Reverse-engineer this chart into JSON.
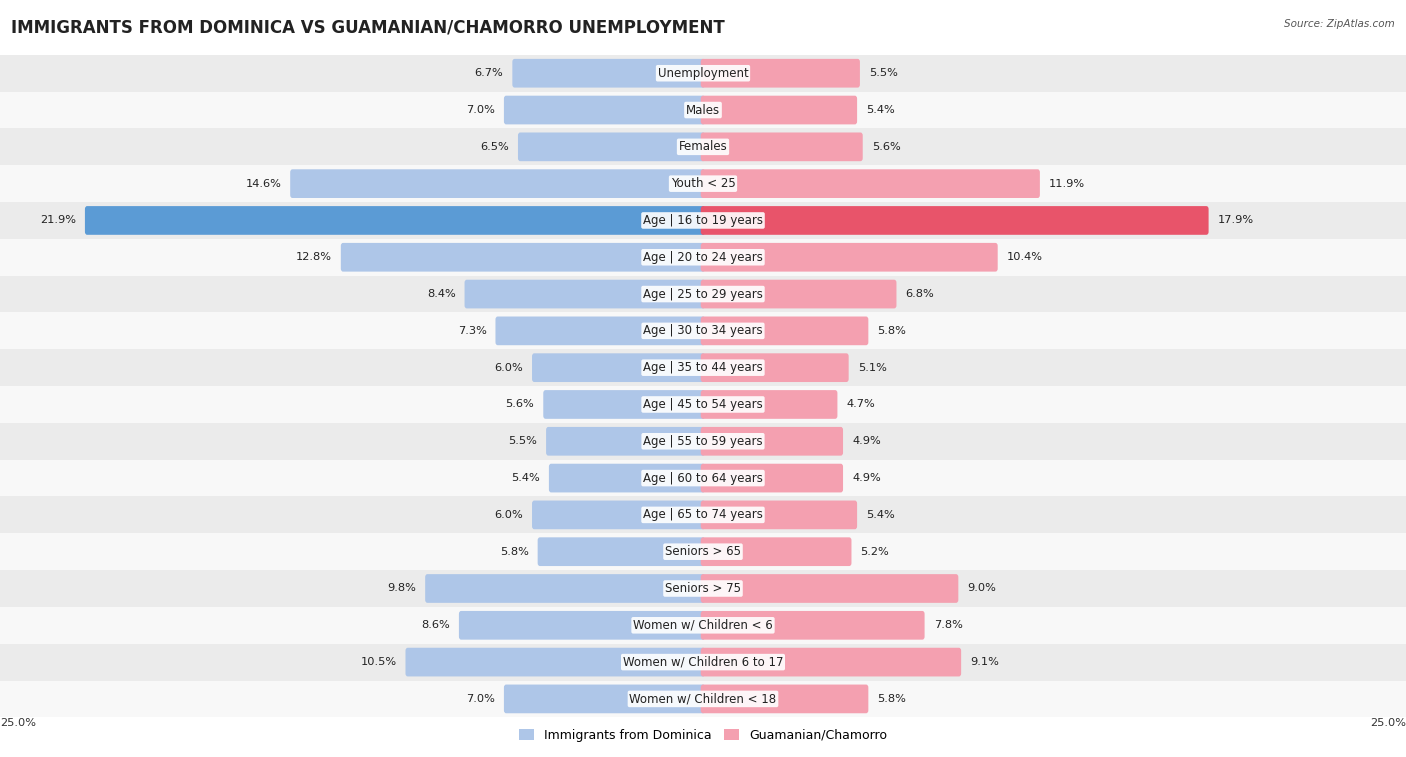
{
  "title": "IMMIGRANTS FROM DOMINICA VS GUAMANIAN/CHAMORRO UNEMPLOYMENT",
  "source": "Source: ZipAtlas.com",
  "categories": [
    "Unemployment",
    "Males",
    "Females",
    "Youth < 25",
    "Age | 16 to 19 years",
    "Age | 20 to 24 years",
    "Age | 25 to 29 years",
    "Age | 30 to 34 years",
    "Age | 35 to 44 years",
    "Age | 45 to 54 years",
    "Age | 55 to 59 years",
    "Age | 60 to 64 years",
    "Age | 65 to 74 years",
    "Seniors > 65",
    "Seniors > 75",
    "Women w/ Children < 6",
    "Women w/ Children 6 to 17",
    "Women w/ Children < 18"
  ],
  "left_values": [
    6.7,
    7.0,
    6.5,
    14.6,
    21.9,
    12.8,
    8.4,
    7.3,
    6.0,
    5.6,
    5.5,
    5.4,
    6.0,
    5.8,
    9.8,
    8.6,
    10.5,
    7.0
  ],
  "right_values": [
    5.5,
    5.4,
    5.6,
    11.9,
    17.9,
    10.4,
    6.8,
    5.8,
    5.1,
    4.7,
    4.9,
    4.9,
    5.4,
    5.2,
    9.0,
    7.8,
    9.1,
    5.8
  ],
  "left_color": "#aec6e8",
  "right_color": "#f4a0b0",
  "highlight_left_color": "#5b9bd5",
  "highlight_right_color": "#e8546a",
  "highlight_row": 4,
  "max_value": 25.0,
  "bar_height": 0.62,
  "row_bg_colors": [
    "#ebebeb",
    "#f8f8f8"
  ],
  "legend_left": "Immigrants from Dominica",
  "legend_right": "Guamanian/Chamorro",
  "title_fontsize": 12,
  "label_fontsize": 8.5,
  "value_fontsize": 8.2
}
